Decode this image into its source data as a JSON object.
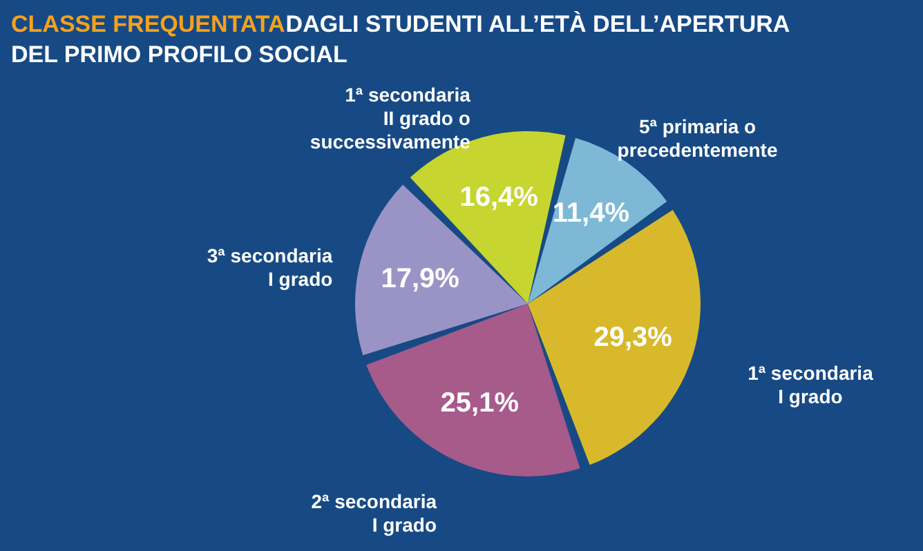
{
  "chart_data": {
    "type": "pie",
    "title": "CLASSE FREQUENTATA",
    "subtitle": "DAGLI STUDENTI ALL’ETÀ DELL’APERTURA DEL PRIMO PROFILO SOCIAL",
    "categories": [
      "5ª primaria o precedentemente",
      "1ª secondaria I grado",
      "2ª secondaria I grado",
      "3ª secondaria I grado",
      "1ª secondaria II grado o successivamente"
    ],
    "values": [
      11.4,
      29.3,
      25.1,
      17.9,
      16.4
    ],
    "value_labels": [
      "11,4%",
      "29,3%",
      "25,1%",
      "17,9%",
      "16,4%"
    ],
    "colors": [
      "#7db9d6",
      "#d8b92c",
      "#a65b8b",
      "#9a94c6",
      "#c6d52f"
    ]
  }
}
